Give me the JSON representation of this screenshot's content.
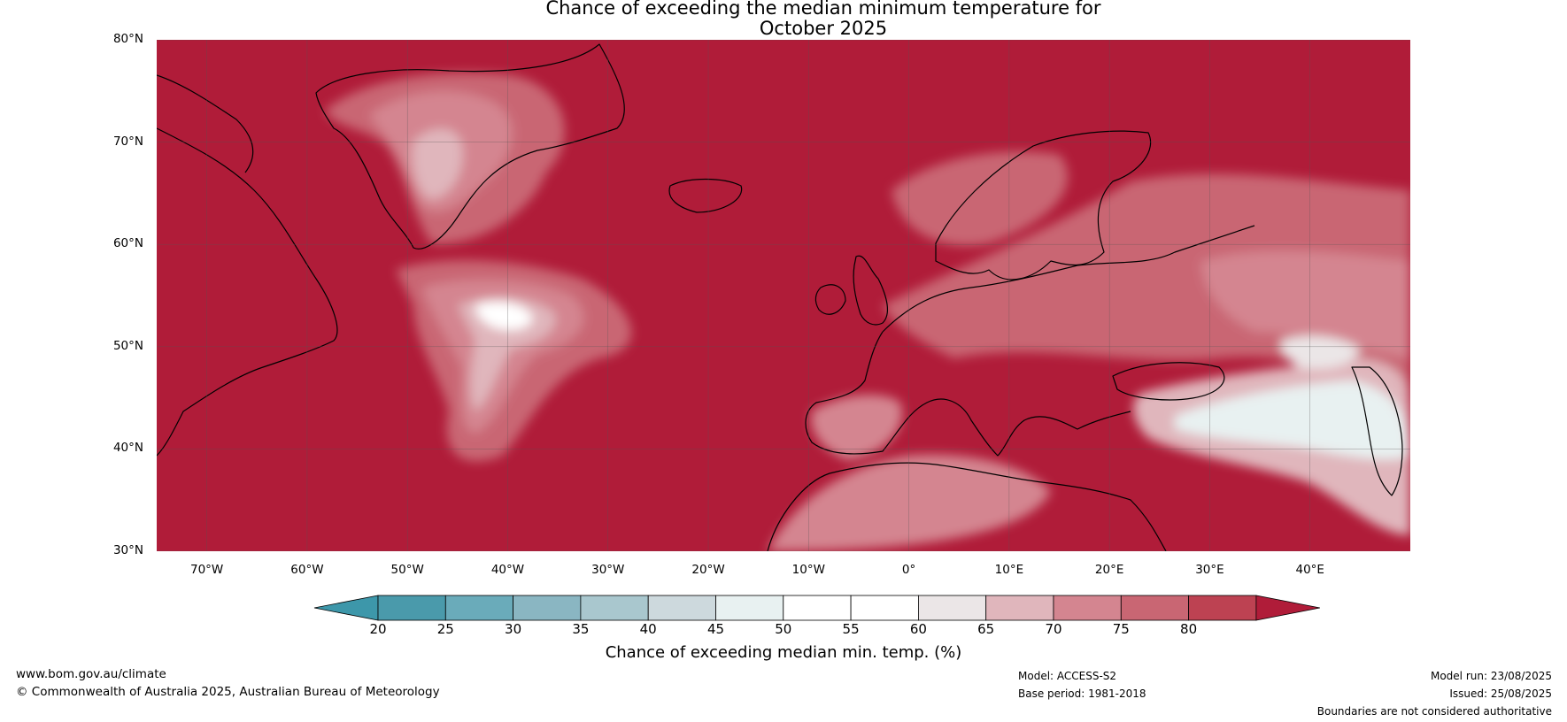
{
  "title": {
    "line1": "Chance of exceeding the median minimum temperature for",
    "line2": "October 2025"
  },
  "map": {
    "region": "North Atlantic and Europe",
    "projection": "equirectangular",
    "lat_range": [
      30,
      80
    ],
    "lon_range": [
      -75,
      50
    ],
    "lat_ticks": [
      "30°N",
      "40°N",
      "50°N",
      "60°N",
      "70°N",
      "80°N"
    ],
    "lon_ticks": [
      "70°W",
      "60°W",
      "50°W",
      "40°W",
      "30°W",
      "20°W",
      "10°W",
      "0°",
      "10°E",
      "20°E",
      "30°E",
      "40°E"
    ],
    "background_color": "#b01c39",
    "coastline_color": "#000000",
    "border_color": "#808080"
  },
  "colorbar": {
    "ticks": [
      "20",
      "25",
      "30",
      "35",
      "40",
      "45",
      "50",
      "55",
      "60",
      "65",
      "70",
      "75",
      "80"
    ],
    "colors": [
      "#4a9aab",
      "#6aabba",
      "#8ab6c2",
      "#a9c7ce",
      "#cdd9dd",
      "#e8f1f1",
      "#ffffff",
      "#ffffff",
      "#ebe6e7",
      "#e0b6bc",
      "#d48590",
      "#c96673",
      "#bd4252"
    ],
    "under_color": "#3d97aa",
    "over_color": "#b01c39",
    "title": "Chance of exceeding median min. temp. (%)"
  },
  "footer": {
    "website": "www.bom.gov.au/climate",
    "copyright": "© Commonwealth of Australia 2025, Australian Bureau of Meteorology",
    "model": "Model: ACCESS-S2",
    "base_period": "Base period: 1981-2018",
    "model_run": "Model run: 23/08/2025",
    "issued": "Issued: 25/08/2025",
    "disclaimer": "Boundaries are not considered authoritative"
  }
}
